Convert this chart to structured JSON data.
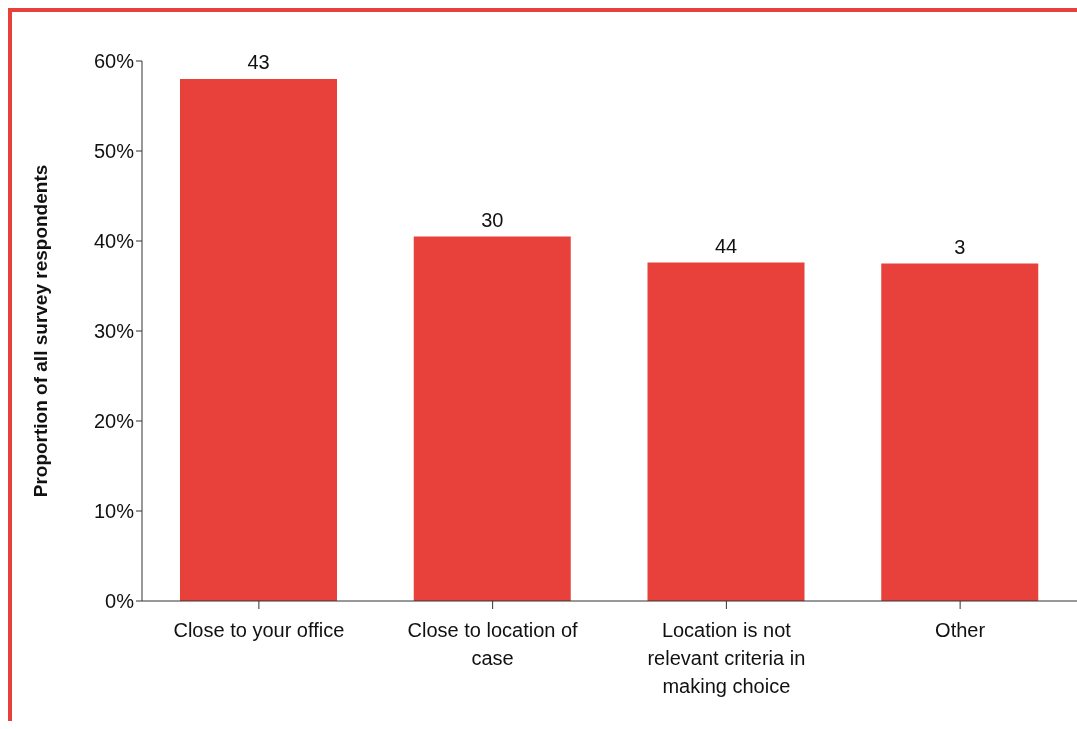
{
  "chart_data": {
    "type": "bar",
    "ylabel": "Proportion of all survey respondents",
    "categories": [
      "Close to your office",
      "Close to location of case",
      "Location is not relevant criteria in making choice",
      "Other"
    ],
    "values": [
      58,
      40.5,
      37.6,
      37.5
    ],
    "annotations": [
      {
        "text": "43",
        "x": "Close to your office",
        "y": 58
      },
      {
        "text": "30",
        "x": "Close to location of case",
        "y": 40.5
      },
      {
        "text": "44",
        "x": "Location is not relevant criteria in making choice",
        "y": 37.6
      },
      {
        "text": "3",
        "x": "Other",
        "y": 37.5
      }
    ],
    "color": "#e8403a",
    "ylim": [
      0,
      60
    ],
    "yticks": [
      {
        "value": 0,
        "label": "0%"
      },
      {
        "value": 10,
        "label": "10%"
      },
      {
        "value": 20,
        "label": "20%"
      },
      {
        "value": 30,
        "label": "30%"
      },
      {
        "value": 40,
        "label": "40%"
      },
      {
        "value": 50,
        "label": "50%"
      },
      {
        "value": 60,
        "label": "60%"
      }
    ],
    "grid": false,
    "legend": false
  }
}
